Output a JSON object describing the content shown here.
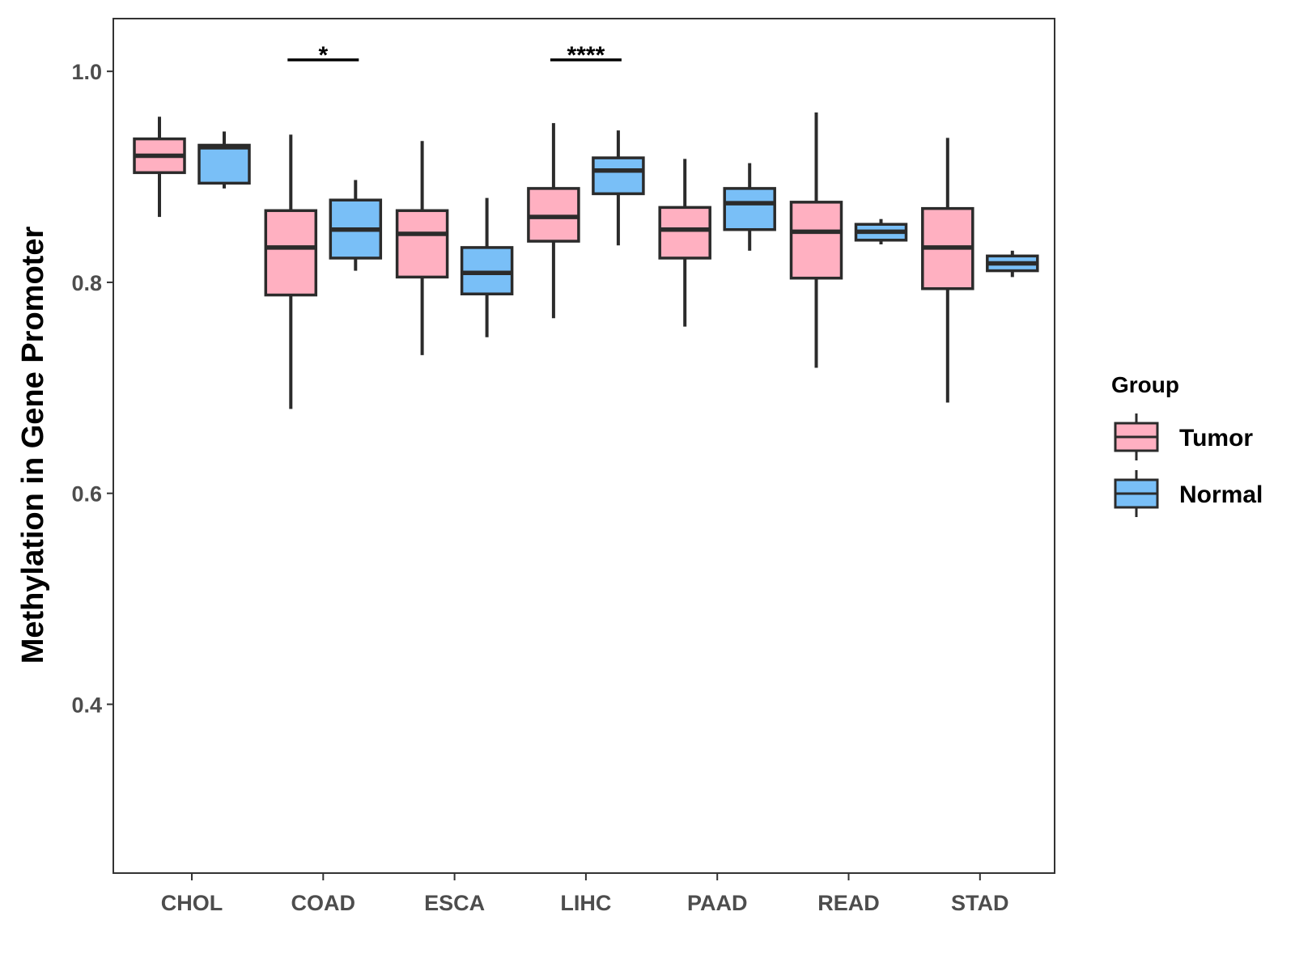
{
  "chart_data": {
    "type": "boxplot",
    "title": "",
    "xlabel": "",
    "ylabel": "Methylation in Gene Promoter",
    "ylim": [
      0.24,
      1.05
    ],
    "yticks": [
      0.4,
      0.6,
      0.8,
      1.0
    ],
    "ytick_labels": [
      "0.4",
      "0.6",
      "0.8",
      "1.0"
    ],
    "grid": false,
    "legend_position": "right",
    "legend": {
      "title": "Group",
      "entries": [
        {
          "name": "Tumor",
          "color": "#ffb0c1"
        },
        {
          "name": "Normal",
          "color": "#79bff7"
        }
      ]
    },
    "categories": [
      "CHOL",
      "COAD",
      "ESCA",
      "LIHC",
      "PAAD",
      "READ",
      "STAD"
    ],
    "series": [
      {
        "name": "Tumor",
        "color": "#ffb0c1",
        "boxes": [
          {
            "min": 0.862,
            "q1": 0.904,
            "median": 0.92,
            "q3": 0.936,
            "max": 0.957
          },
          {
            "min": 0.68,
            "q1": 0.788,
            "median": 0.833,
            "q3": 0.868,
            "max": 0.94
          },
          {
            "min": 0.731,
            "q1": 0.805,
            "median": 0.846,
            "q3": 0.868,
            "max": 0.934
          },
          {
            "min": 0.766,
            "q1": 0.839,
            "median": 0.862,
            "q3": 0.889,
            "max": 0.951
          },
          {
            "min": 0.758,
            "q1": 0.823,
            "median": 0.85,
            "q3": 0.871,
            "max": 0.917
          },
          {
            "min": 0.719,
            "q1": 0.804,
            "median": 0.848,
            "q3": 0.876,
            "max": 0.961
          },
          {
            "min": 0.686,
            "q1": 0.794,
            "median": 0.833,
            "q3": 0.87,
            "max": 0.937
          }
        ]
      },
      {
        "name": "Normal",
        "color": "#79bff7",
        "boxes": [
          {
            "min": 0.889,
            "q1": 0.894,
            "median": 0.928,
            "q3": 0.93,
            "max": 0.943
          },
          {
            "min": 0.811,
            "q1": 0.823,
            "median": 0.85,
            "q3": 0.878,
            "max": 0.897
          },
          {
            "min": 0.748,
            "q1": 0.789,
            "median": 0.809,
            "q3": 0.833,
            "max": 0.88
          },
          {
            "min": 0.835,
            "q1": 0.884,
            "median": 0.906,
            "q3": 0.918,
            "max": 0.944
          },
          {
            "min": 0.83,
            "q1": 0.85,
            "median": 0.875,
            "q3": 0.889,
            "max": 0.913
          },
          {
            "min": 0.836,
            "q1": 0.84,
            "median": 0.848,
            "q3": 0.855,
            "max": 0.86
          },
          {
            "min": 0.805,
            "q1": 0.811,
            "median": 0.818,
            "q3": 0.825,
            "max": 0.83
          }
        ]
      }
    ],
    "annotations": [
      {
        "category": "COAD",
        "label": "*"
      },
      {
        "category": "LIHC",
        "label": "****"
      }
    ]
  }
}
